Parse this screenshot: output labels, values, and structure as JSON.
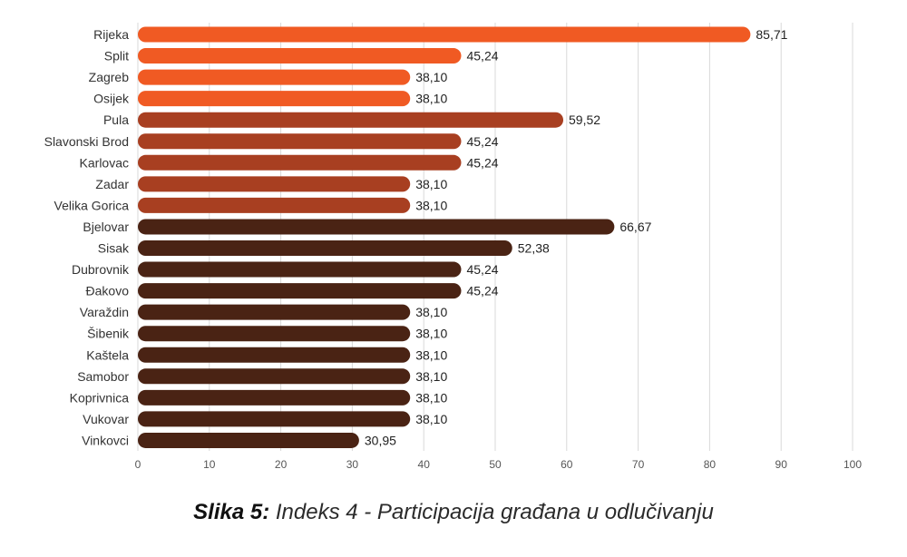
{
  "chart_data": {
    "type": "bar",
    "orientation": "horizontal",
    "categories": [
      "Rijeka",
      "Split",
      "Zagreb",
      "Osijek",
      "Pula",
      "Slavonski Brod",
      "Karlovac",
      "Zadar",
      "Velika Gorica",
      "Bjelovar",
      "Sisak",
      "Dubrovnik",
      "Đakovo",
      "Varaždin",
      "Šibenik",
      "Kaštela",
      "Samobor",
      "Koprivnica",
      "Vukovar",
      "Vinkovci"
    ],
    "values": [
      85.71,
      45.24,
      38.1,
      38.1,
      59.52,
      45.24,
      45.24,
      38.1,
      38.1,
      66.67,
      52.38,
      45.24,
      45.24,
      38.1,
      38.1,
      38.1,
      38.1,
      38.1,
      38.1,
      30.95
    ],
    "value_labels": [
      "85,71",
      "45,24",
      "38,10",
      "38,10",
      "59,52",
      "45,24",
      "45,24",
      "38,10",
      "38,10",
      "66,67",
      "52,38",
      "45,24",
      "45,24",
      "38,10",
      "38,10",
      "38,10",
      "38,10",
      "38,10",
      "38,10",
      "30,95"
    ],
    "bar_colors": [
      "#f05a23",
      "#f05a23",
      "#f05a23",
      "#f05a23",
      "#a83f21",
      "#a83f21",
      "#a83f21",
      "#a83f21",
      "#a83f21",
      "#4a2314",
      "#4a2314",
      "#4a2314",
      "#4a2314",
      "#4a2314",
      "#4a2314",
      "#4a2314",
      "#4a2314",
      "#4a2314",
      "#4a2314",
      "#4a2314"
    ],
    "xlim": [
      0,
      100
    ],
    "xticks": [
      0,
      10,
      20,
      30,
      40,
      50,
      60,
      70,
      80,
      90,
      100
    ],
    "grid": "vertical",
    "gridline_color": "#d9d9d9"
  },
  "caption": {
    "label": "Slika 5:",
    "text": " Indeks 4 - Participacija građana u odlučivanju"
  }
}
